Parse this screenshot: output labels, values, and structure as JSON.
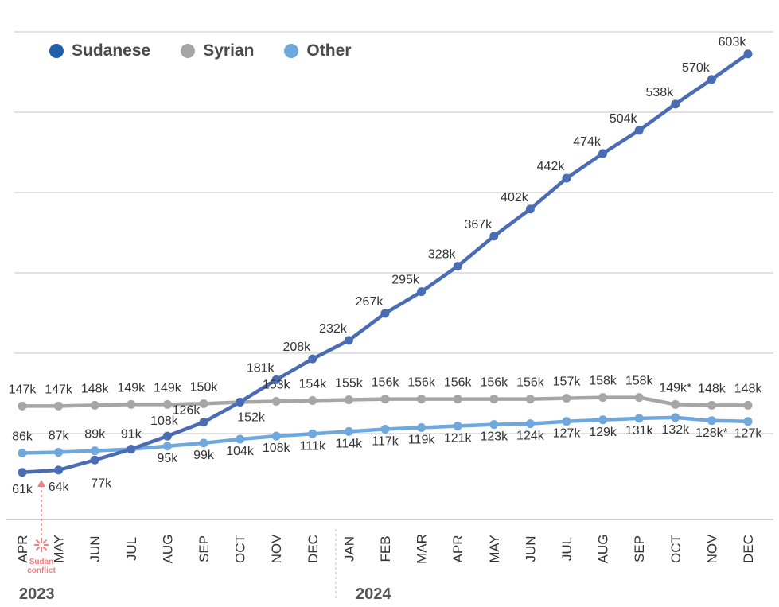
{
  "chart_data": {
    "type": "line",
    "categories": [
      "APR",
      "MAY",
      "JUN",
      "JUL",
      "AUG",
      "SEP",
      "OCT",
      "NOV",
      "DEC",
      "JAN",
      "FEB",
      "MAR",
      "APR",
      "MAY",
      "JUN",
      "JUL",
      "AUG",
      "SEP",
      "OCT",
      "NOV",
      "DEC"
    ],
    "year_labels": [
      {
        "label": "2023",
        "start_index": 0
      },
      {
        "label": "2024",
        "start_index": 9
      }
    ],
    "series": [
      {
        "name": "Sudanese",
        "color": "#4a6cb5",
        "legend_color": "#1f5fa8",
        "values": [
          61,
          64,
          77,
          91,
          108,
          126,
          152,
          181,
          208,
          232,
          267,
          295,
          328,
          367,
          402,
          442,
          474,
          504,
          538,
          570,
          603
        ],
        "labels": [
          "61k",
          "64k",
          "77k",
          "91k",
          "108k",
          "126k",
          "152k",
          "181k",
          "208k",
          "232k",
          "267k",
          "295k",
          "328k",
          "367k",
          "402k",
          "442k",
          "474k",
          "504k",
          "538k",
          "570k",
          "603k"
        ]
      },
      {
        "name": "Syrian",
        "color": "#a6a6a6",
        "legend_color": "#a6a6a6",
        "values": [
          147,
          147,
          148,
          149,
          149,
          150,
          152,
          153,
          154,
          155,
          156,
          156,
          156,
          156,
          156,
          157,
          158,
          158,
          149,
          148,
          148
        ],
        "labels": [
          "147k",
          "147k",
          "148k",
          "149k",
          "149k",
          "150k",
          "",
          "153k",
          "154k",
          "155k",
          "156k",
          "156k",
          "156k",
          "156k",
          "156k",
          "157k",
          "158k",
          "158k",
          "149k*",
          "148k",
          "148k"
        ]
      },
      {
        "name": "Other",
        "color": "#6fa8dc",
        "legend_color": "#6fa8dc",
        "values": [
          86,
          87,
          89,
          91,
          95,
          99,
          104,
          108,
          111,
          114,
          117,
          119,
          121,
          123,
          124,
          127,
          129,
          131,
          132,
          128,
          127
        ],
        "labels": [
          "86k",
          "87k",
          "89k",
          "",
          "95k",
          "99k",
          "104k",
          "108k",
          "111k",
          "114k",
          "117k",
          "119k",
          "121k",
          "123k",
          "124k",
          "127k",
          "129k",
          "131k",
          "132k",
          "128k*",
          "127k"
        ]
      }
    ],
    "annotation": {
      "text_line1": "Sudan",
      "text_line2": "conflict",
      "color": "#f08080",
      "category_index": 0
    },
    "ylim": [
      0,
      630
    ],
    "grid": true,
    "legend_position": "top-left"
  }
}
